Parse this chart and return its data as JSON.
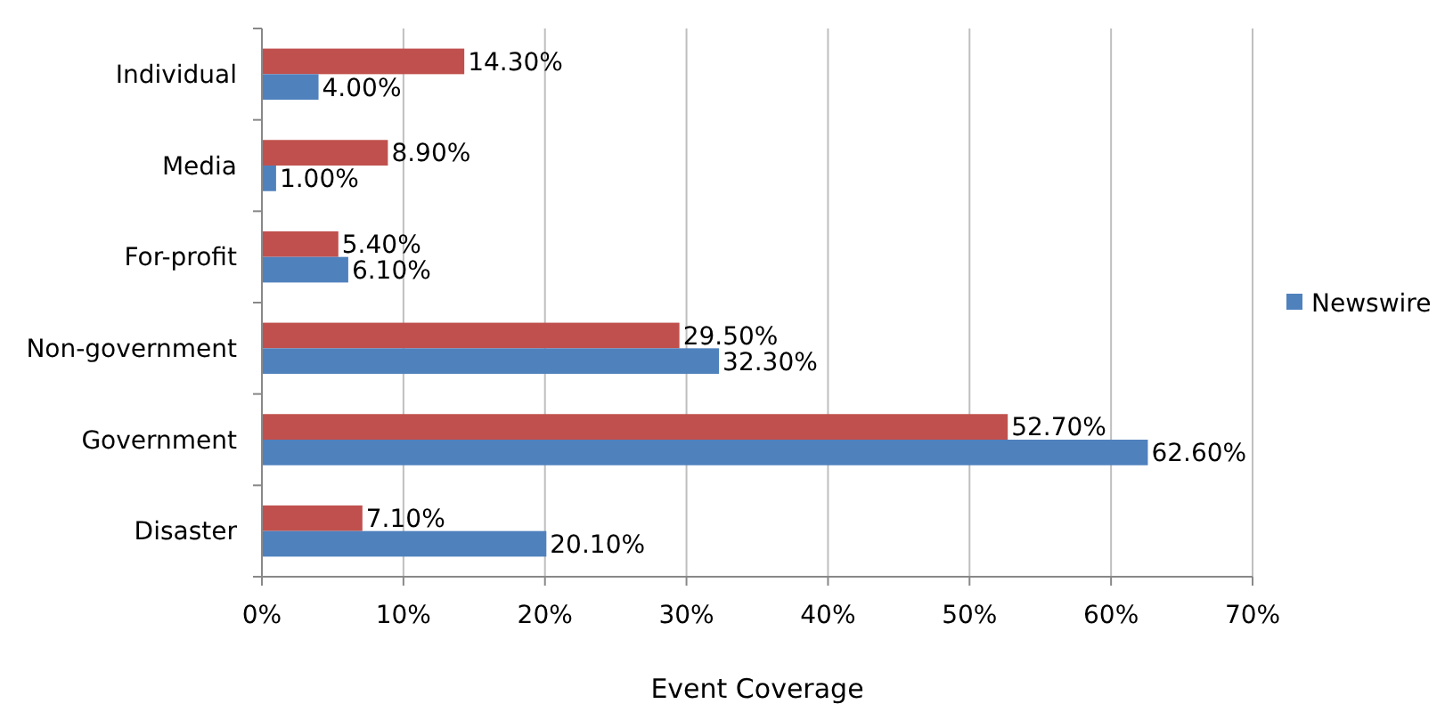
{
  "chart_data": {
    "type": "bar",
    "orientation": "horizontal",
    "xlabel": "Event Coverage",
    "categories": [
      "Individual",
      "Media",
      "For-profit",
      "Non-government",
      "Government",
      "Disaster"
    ],
    "series": [
      {
        "color": "#c0504d",
        "values": [
          14.3,
          8.9,
          5.4,
          29.5,
          52.7,
          7.1
        ],
        "value_labels": [
          "14.30%",
          "8.90%",
          "5.40%",
          "29.50%",
          "52.70%",
          "7.10%"
        ]
      },
      {
        "name": "Newswire",
        "color": "#4f81bd",
        "values": [
          4,
          1,
          6.1,
          32.3,
          62.6,
          20.1
        ],
        "value_labels": [
          "4.00%",
          "1.00%",
          "6.10%",
          "32.30%",
          "62.60%",
          "20.10%"
        ]
      }
    ],
    "xlim": [
      0,
      70
    ],
    "xticks": [
      {
        "value": 0,
        "label": "0%"
      },
      {
        "value": 10,
        "label": "10%"
      },
      {
        "value": 20,
        "label": "20%"
      },
      {
        "value": 30,
        "label": "30%"
      },
      {
        "value": 40,
        "label": "40%"
      },
      {
        "value": 50,
        "label": "50%"
      },
      {
        "value": 60,
        "label": "60%"
      },
      {
        "value": 70,
        "label": "70%"
      }
    ],
    "grid": "x",
    "legend": "right"
  }
}
